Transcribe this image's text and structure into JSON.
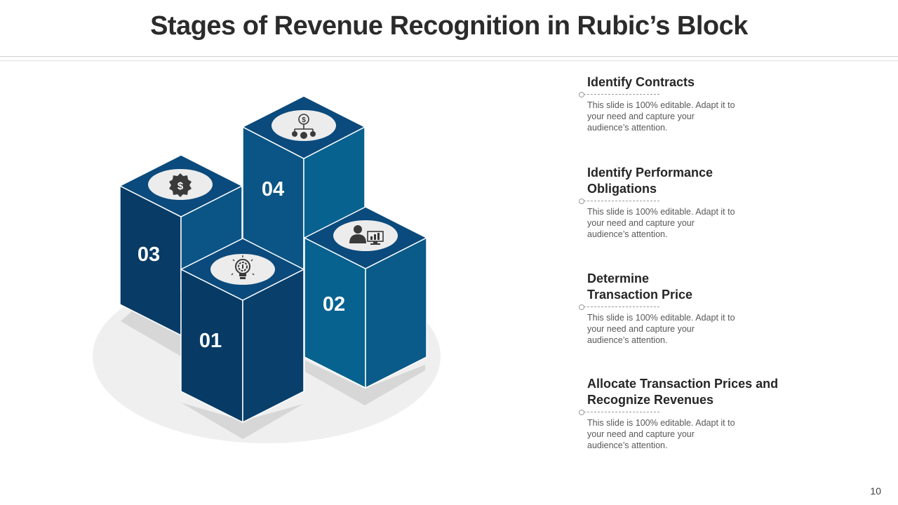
{
  "title": "Stages of Revenue Recognition in Rubic’s Block",
  "blocks": [
    {
      "number": "01",
      "icon": "lightbulb-gear-icon"
    },
    {
      "number": "02",
      "icon": "user-monitor-chart-icon"
    },
    {
      "number": "03",
      "icon": "dollar-badge-icon"
    },
    {
      "number": "04",
      "icon": "dollar-network-icon"
    }
  ],
  "stages": [
    {
      "title_lines": [
        "Identify Contracts"
      ],
      "description": "This slide is 100% editable. Adapt it to your need and capture your audience’s attention."
    },
    {
      "title_lines": [
        "Identify Performance",
        "Obligations"
      ],
      "description": "This slide is 100% editable. Adapt it to your need and capture your audience’s attention."
    },
    {
      "title_lines": [
        "Determine",
        "Transaction Price"
      ],
      "description": "This slide is 100% editable. Adapt it to your need and capture your audience’s attention."
    },
    {
      "title_lines": [
        "Allocate Transaction Prices and",
        "Recognize Revenues"
      ],
      "description": "This slide is 100% editable. Adapt it to your need and capture your audience’s attention."
    }
  ],
  "page_number": "10",
  "colors": {
    "block_top": "#0b4a7c",
    "block_dark": "#083b66",
    "block_mid": "#0a5585",
    "block_light": "#07628f",
    "icon_disc": "#ececec",
    "icon_fill": "#3a3a3a",
    "floor": "#efefef",
    "shadow": "#d7d7d7"
  }
}
